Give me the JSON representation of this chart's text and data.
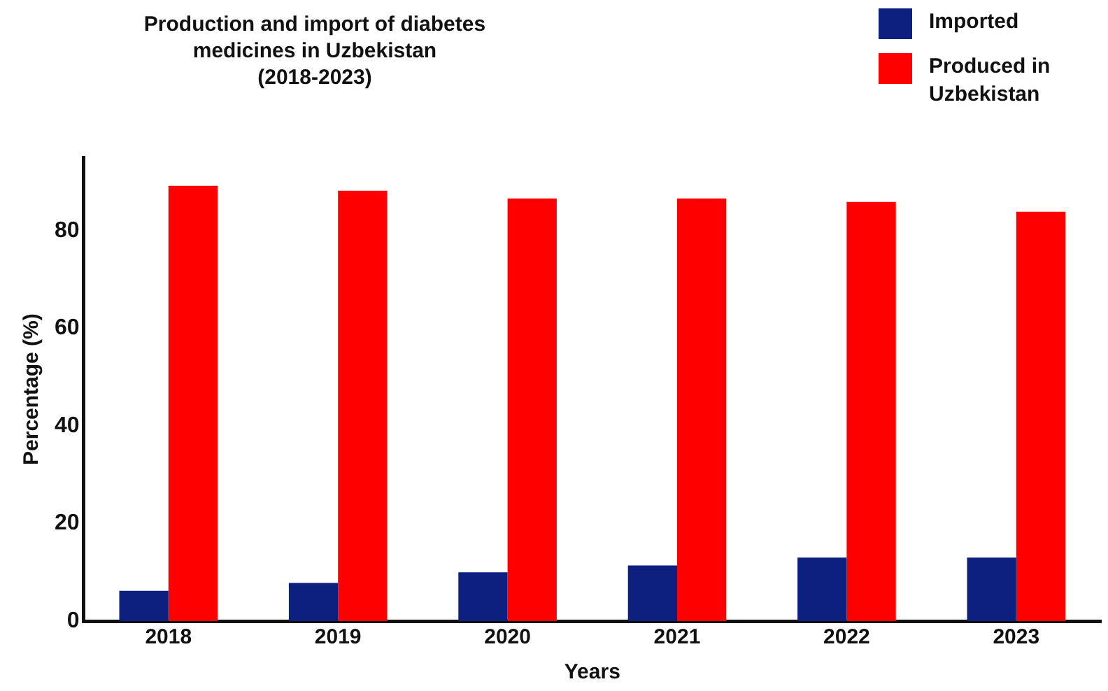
{
  "chart_data": {
    "type": "bar",
    "title": "Production and import of diabetes medicines in Uzbekistan (2018-2023)",
    "xlabel": "Years",
    "ylabel": "Percentage (%)",
    "categories": [
      "2018",
      "2019",
      "2020",
      "2021",
      "2022",
      "2023"
    ],
    "series": [
      {
        "name": "Imported",
        "color": "#0d2080",
        "values": [
          6.2,
          7.8,
          10,
          11.4,
          13,
          13
        ]
      },
      {
        "name": "Produced in Uzbekistan",
        "color": "#ff0000",
        "values": [
          89.2,
          88.2,
          86.6,
          86.6,
          85.9,
          83.9
        ]
      }
    ],
    "ylim": [
      0,
      95
    ],
    "yticks": [
      0,
      20,
      40,
      60,
      80
    ],
    "grid": false,
    "legend": "top right"
  }
}
